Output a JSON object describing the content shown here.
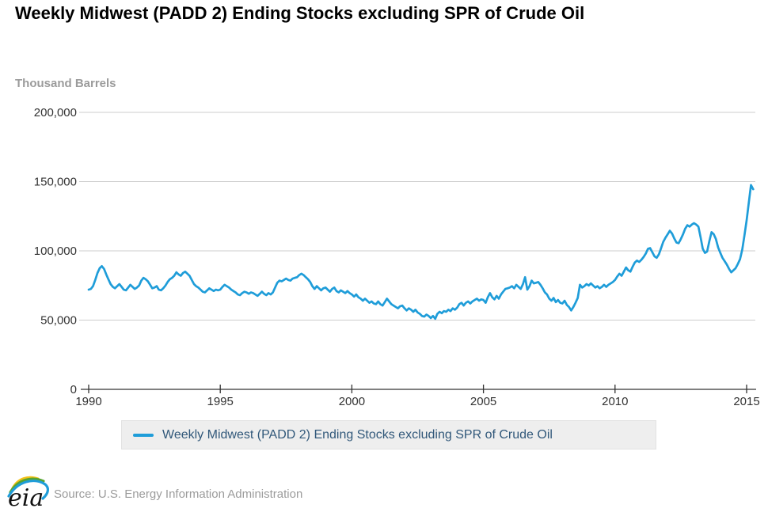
{
  "title": "Weekly Midwest (PADD 2) Ending Stocks excluding SPR of Crude Oil",
  "unit_label": "Thousand Barrels",
  "legend": {
    "label": "Weekly Midwest (PADD 2) Ending Stocks excluding SPR of Crude Oil"
  },
  "source": "Source: U.S. Energy Information Administration",
  "logo_text": "eia",
  "colors": {
    "line": "#1f9dd9",
    "legend_text": "#31587a",
    "grid": "#cccccc",
    "axis": "#333333",
    "tick_text": "#333333",
    "muted_text": "#9b9b9b",
    "legend_bg": "#eeeeee"
  },
  "chart_data": {
    "type": "line",
    "title": "Weekly Midwest (PADD 2) Ending Stocks excluding SPR of Crude Oil",
    "xlabel": "",
    "ylabel": "Thousand Barrels",
    "xlim": [
      1990,
      2015.4
    ],
    "ylim": [
      0,
      200000
    ],
    "x_ticks": [
      1990,
      1995,
      2000,
      2005,
      2010,
      2015
    ],
    "x_tick_labels": [
      "1990",
      "1995",
      "2000",
      "2005",
      "2010",
      "2015"
    ],
    "y_ticks": [
      0,
      50000,
      100000,
      150000,
      200000
    ],
    "y_tick_labels": [
      "0",
      "50,000",
      "100,000",
      "150,000",
      "200,000"
    ],
    "grid": "horizontal",
    "legend_position": "bottom",
    "series": [
      {
        "name": "Weekly Midwest (PADD 2) Ending Stocks excluding SPR of Crude Oil",
        "start_year": 1990,
        "points_per_year": 12,
        "unit": "thousand barrels",
        "values": [
          72000,
          72500,
          74500,
          79000,
          84000,
          87500,
          89000,
          87000,
          83000,
          79500,
          76000,
          74000,
          73000,
          74500,
          76000,
          74000,
          72000,
          71500,
          73500,
          75500,
          74000,
          72500,
          73500,
          75000,
          78500,
          80500,
          79500,
          78000,
          75500,
          73000,
          73500,
          74500,
          72000,
          71500,
          73000,
          75000,
          77500,
          79500,
          80500,
          82000,
          84500,
          83000,
          82000,
          84000,
          85000,
          83500,
          82000,
          79000,
          76000,
          74500,
          73500,
          72000,
          70500,
          70000,
          71500,
          73000,
          72000,
          71000,
          72000,
          71500,
          72000,
          74000,
          75500,
          74500,
          73500,
          72000,
          71000,
          70000,
          68500,
          68000,
          69500,
          70500,
          70000,
          69000,
          70000,
          69500,
          68500,
          67500,
          69000,
          70500,
          69000,
          68000,
          69500,
          68500,
          70000,
          73500,
          77000,
          78500,
          78000,
          79000,
          80000,
          79000,
          78500,
          80000,
          80500,
          81000,
          82500,
          83500,
          82500,
          81000,
          79500,
          77500,
          74500,
          72500,
          74500,
          73000,
          71500,
          73000,
          73500,
          72000,
          70500,
          72500,
          73500,
          71000,
          70000,
          71500,
          70500,
          69500,
          71000,
          69500,
          68500,
          67000,
          68500,
          66500,
          65500,
          64000,
          65500,
          64000,
          62500,
          63500,
          62000,
          61500,
          63500,
          61500,
          60500,
          63000,
          65500,
          63500,
          61500,
          60500,
          59500,
          58500,
          60000,
          60500,
          58500,
          57000,
          58500,
          57500,
          56000,
          57500,
          55500,
          54500,
          53000,
          52500,
          54000,
          53000,
          51500,
          53000,
          51000,
          54500,
          56000,
          55000,
          56500,
          56000,
          57500,
          56500,
          58500,
          57500,
          59000,
          61500,
          62500,
          60500,
          62500,
          63500,
          62000,
          63500,
          64500,
          65500,
          64000,
          65000,
          64500,
          62500,
          66500,
          69500,
          66500,
          65000,
          67500,
          65500,
          68500,
          70500,
          72500,
          73000,
          73500,
          74500,
          73000,
          75500,
          74000,
          72500,
          76000,
          81000,
          72000,
          74500,
          78500,
          76500,
          77000,
          77500,
          75500,
          73000,
          70000,
          68500,
          65500,
          64000,
          66000,
          63000,
          64500,
          62500,
          62000,
          64000,
          61000,
          59500,
          57000,
          59500,
          62500,
          66000,
          75500,
          73500,
          74500,
          76000,
          75000,
          76500,
          75000,
          73500,
          74500,
          73000,
          74000,
          75500,
          74000,
          75500,
          76500,
          77500,
          79000,
          81500,
          83500,
          82000,
          85000,
          88000,
          86000,
          85000,
          88500,
          91500,
          93000,
          92000,
          93500,
          95500,
          98000,
          101500,
          102000,
          99000,
          96000,
          95000,
          97500,
          102000,
          106500,
          109500,
          112000,
          114500,
          112500,
          109000,
          106000,
          105500,
          108500,
          112000,
          116000,
          118500,
          117500,
          119000,
          120000,
          119000,
          117500,
          110000,
          101500,
          98500,
          99500,
          107000,
          113500,
          112000,
          108500,
          102500,
          98500,
          95000,
          92500,
          90000,
          87000,
          84500,
          86000,
          87500,
          90500,
          94000,
          101000,
          111000,
          122000,
          135000,
          147500,
          144500
        ]
      }
    ]
  }
}
